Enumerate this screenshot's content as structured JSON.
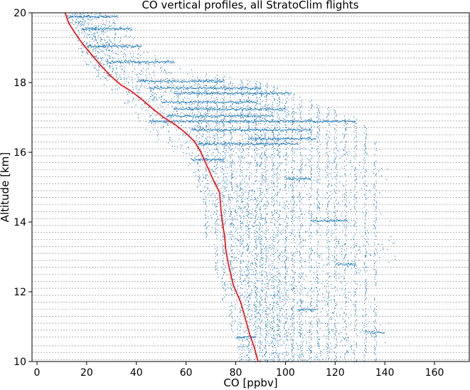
{
  "chart_data": {
    "type": "scatter",
    "title": "CO vertical profiles, all StratoClim flights",
    "xlabel": "CO [ppbv]",
    "ylabel": "Altitude [km]",
    "xlim": [
      -2,
      174
    ],
    "ylim": [
      10,
      20
    ],
    "x_ticks": [
      0,
      20,
      40,
      60,
      80,
      100,
      120,
      140,
      160
    ],
    "y_ticks": [
      10,
      12,
      14,
      16,
      18,
      20
    ],
    "grid": "horizontal dashed lines at dense altitude levels",
    "grid_levels_km": [
      10.05,
      10.25,
      10.45,
      10.7,
      10.9,
      11.1,
      11.3,
      11.5,
      11.7,
      11.9,
      12.1,
      12.3,
      12.5,
      12.7,
      12.9,
      13.1,
      13.3,
      13.5,
      13.7,
      13.9,
      14.1,
      14.3,
      14.5,
      14.7,
      14.9,
      15.1,
      15.3,
      15.5,
      15.7,
      15.9,
      16.1,
      16.3,
      16.5,
      16.7,
      16.9,
      17.1,
      17.3,
      17.5,
      17.7,
      17.9,
      18.1,
      18.3,
      18.5,
      18.7,
      18.9,
      19.1,
      19.3,
      19.5,
      19.7,
      19.9
    ],
    "colors": {
      "scatter": "#1f77b4",
      "mean_profile": "#ff0000",
      "grid": "#7f7f7f"
    },
    "series": [
      {
        "kind": "mean-profile-line",
        "points": [
          [
            11.3,
            20.0
          ],
          [
            12.8,
            19.7
          ],
          [
            15.5,
            19.4
          ],
          [
            18.5,
            19.1
          ],
          [
            22.0,
            18.8
          ],
          [
            25.5,
            18.5
          ],
          [
            29.5,
            18.2
          ],
          [
            33.5,
            17.95
          ],
          [
            38.0,
            17.75
          ],
          [
            42.5,
            17.5
          ],
          [
            46.5,
            17.25
          ],
          [
            51.0,
            17.0
          ],
          [
            55.5,
            16.8
          ],
          [
            60.0,
            16.55
          ],
          [
            63.5,
            16.3
          ],
          [
            66.0,
            16.0
          ],
          [
            68.5,
            15.6
          ],
          [
            71.0,
            15.2
          ],
          [
            73.5,
            14.85
          ],
          [
            74.0,
            14.4
          ],
          [
            74.5,
            14.05
          ],
          [
            75.5,
            13.6
          ],
          [
            76.0,
            13.2
          ],
          [
            77.0,
            12.8
          ],
          [
            79.0,
            12.2
          ],
          [
            82.0,
            11.7
          ],
          [
            84.0,
            11.2
          ],
          [
            85.5,
            10.8
          ],
          [
            87.5,
            10.4
          ],
          [
            89.0,
            10.0
          ]
        ]
      },
      {
        "kind": "measurement-scatter",
        "envelope_min": [
          [
            10.0,
            20.0
          ],
          [
            13.0,
            19.5
          ],
          [
            15.0,
            19.0
          ],
          [
            20.0,
            18.5
          ],
          [
            25.0,
            18.0
          ],
          [
            32.0,
            17.5
          ],
          [
            38.0,
            17.0
          ],
          [
            45.0,
            16.5
          ],
          [
            55.0,
            16.0
          ],
          [
            62.0,
            15.5
          ],
          [
            65.0,
            15.0
          ],
          [
            66.0,
            14.5
          ],
          [
            67.0,
            14.0
          ],
          [
            68.0,
            13.5
          ],
          [
            70.0,
            13.0
          ],
          [
            72.0,
            12.5
          ],
          [
            74.0,
            12.0
          ],
          [
            76.0,
            11.5
          ],
          [
            78.0,
            11.0
          ],
          [
            80.0,
            10.5
          ],
          [
            82.0,
            10.0
          ]
        ],
        "envelope_max": [
          [
            32.0,
            20.0
          ],
          [
            38.0,
            19.5
          ],
          [
            45.0,
            19.0
          ],
          [
            55.0,
            18.5
          ],
          [
            92.0,
            18.0
          ],
          [
            110.0,
            17.5
          ],
          [
            130.0,
            17.0
          ],
          [
            135.0,
            16.5
          ],
          [
            138.0,
            16.0
          ],
          [
            158.0,
            15.5
          ],
          [
            143.0,
            15.0
          ],
          [
            140.0,
            14.5
          ],
          [
            145.0,
            14.0
          ],
          [
            152.0,
            13.5
          ],
          [
            152.0,
            13.0
          ],
          [
            138.0,
            12.5
          ],
          [
            135.0,
            12.0
          ],
          [
            140.0,
            11.5
          ],
          [
            148.0,
            11.0
          ],
          [
            145.0,
            10.5
          ],
          [
            140.0,
            10.0
          ]
        ],
        "dense_core": [
          [
            20.0,
            20.0
          ],
          [
            24.0,
            19.5
          ],
          [
            27.0,
            19.0
          ],
          [
            33.0,
            18.5
          ],
          [
            40.0,
            18.0
          ],
          [
            50.0,
            17.5
          ],
          [
            60.0,
            17.0
          ],
          [
            68.0,
            16.5
          ],
          [
            76.0,
            16.0
          ],
          [
            80.0,
            15.5
          ],
          [
            82.0,
            15.0
          ],
          [
            84.0,
            14.5
          ],
          [
            86.0,
            14.0
          ],
          [
            88.0,
            13.5
          ],
          [
            90.0,
            13.0
          ],
          [
            92.0,
            12.5
          ],
          [
            94.0,
            12.0
          ],
          [
            96.0,
            11.5
          ],
          [
            98.0,
            11.0
          ],
          [
            100.0,
            10.5
          ],
          [
            102.0,
            10.0
          ]
        ],
        "streaks": [
          {
            "y": 19.9,
            "x_range": [
              12,
              32
            ]
          },
          {
            "y": 19.55,
            "x_range": [
              18,
              38
            ]
          },
          {
            "y": 19.05,
            "x_range": [
              20,
              42
            ]
          },
          {
            "y": 18.6,
            "x_range": [
              28,
              55
            ]
          },
          {
            "y": 18.05,
            "x_range": [
              40,
              75
            ]
          },
          {
            "y": 17.85,
            "x_range": [
              45,
              90
            ]
          },
          {
            "y": 17.7,
            "x_range": [
              55,
              102
            ]
          },
          {
            "y": 17.45,
            "x_range": [
              50,
              88
            ]
          },
          {
            "y": 17.25,
            "x_range": [
              55,
              100
            ]
          },
          {
            "y": 17.05,
            "x_range": [
              52,
              95
            ]
          },
          {
            "y": 16.9,
            "x_range": [
              45,
              128
            ]
          },
          {
            "y": 16.65,
            "x_range": [
              62,
              110
            ]
          },
          {
            "y": 16.4,
            "x_range": [
              85,
              112
            ]
          },
          {
            "y": 16.25,
            "x_range": [
              65,
              105
            ]
          },
          {
            "y": 15.8,
            "x_range": [
              62,
              75
            ]
          },
          {
            "y": 15.25,
            "x_range": [
              100,
              110
            ]
          },
          {
            "y": 14.05,
            "x_range": [
              110,
              125
            ]
          },
          {
            "y": 12.8,
            "x_range": [
              120,
              128
            ]
          },
          {
            "y": 11.5,
            "x_range": [
              105,
              112
            ]
          },
          {
            "y": 10.85,
            "x_range": [
              132,
              140
            ]
          },
          {
            "y": 10.7,
            "x_range": [
              80,
              88
            ]
          }
        ],
        "verticals": [
          65,
          68,
          72,
          75,
          78,
          82,
          85,
          88,
          90,
          92,
          95,
          97,
          100,
          103,
          106,
          110,
          113,
          117,
          120,
          124,
          128,
          132,
          136
        ]
      }
    ]
  }
}
